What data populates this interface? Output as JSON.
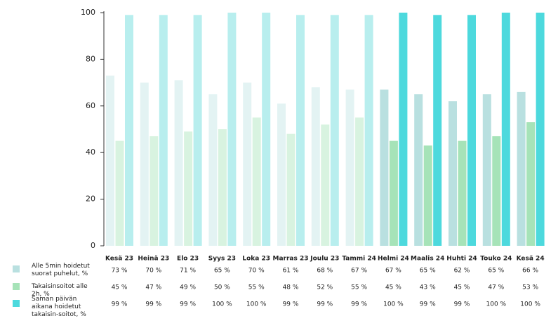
{
  "chart_data": {
    "type": "bar",
    "categories": [
      "Kesä 23",
      "Heinä 23",
      "Elo 23",
      "Syys 23",
      "Loka 23",
      "Marras 23",
      "Joulu 23",
      "Tammi 24",
      "Helmi 24",
      "Maalis 24",
      "Huhti 24",
      "Touko 24",
      "Kesä 24"
    ],
    "series": [
      {
        "name": "Alle 5min hoidetut suorat puhelut, %",
        "color": "#b9e0e0",
        "colors": [
          "#e3f3f3",
          "#e3f3f3",
          "#e3f3f3",
          "#e3f3f3",
          "#e3f3f3",
          "#e3f3f3",
          "#e3f3f3",
          "#e3f3f3",
          "#b9e0e0",
          "#b9e0e0",
          "#b9e0e0",
          "#b9e0e0",
          "#b9e0e0"
        ],
        "values": [
          73,
          70,
          71,
          65,
          70,
          61,
          68,
          67,
          67,
          65,
          62,
          65,
          66
        ],
        "value_labels": [
          "73 %",
          "70 %",
          "71 %",
          "65 %",
          "70 %",
          "61 %",
          "68 %",
          "67 %",
          "67 %",
          "65 %",
          "62 %",
          "65 %",
          "66 %"
        ]
      },
      {
        "name": "Takaisinsoitot alle 2h, %",
        "color": "#a6e3b8",
        "colors": [
          "#d8f3e0",
          "#d8f3e0",
          "#d8f3e0",
          "#d8f3e0",
          "#d8f3e0",
          "#d8f3e0",
          "#d8f3e0",
          "#d8f3e0",
          "#a6e3b8",
          "#a6e3b8",
          "#a6e3b8",
          "#a6e3b8",
          "#a6e3b8"
        ],
        "values": [
          45,
          47,
          49,
          50,
          55,
          48,
          52,
          55,
          45,
          43,
          45,
          47,
          53
        ],
        "value_labels": [
          "45 %",
          "47 %",
          "49 %",
          "50 %",
          "55 %",
          "48 %",
          "52 %",
          "55 %",
          "45 %",
          "43 %",
          "45 %",
          "47 %",
          "53 %"
        ]
      },
      {
        "name": "Saman päivän aikana hoidetut takaisin-soitot, %",
        "color": "#4dd9dd",
        "colors": [
          "#b8eeee",
          "#b8eeee",
          "#b8eeee",
          "#b8eeee",
          "#b8eeee",
          "#b8eeee",
          "#b8eeee",
          "#b8eeee",
          "#4dd9dd",
          "#4dd9dd",
          "#4dd9dd",
          "#4dd9dd",
          "#4dd9dd"
        ],
        "values": [
          99,
          99,
          99,
          100,
          100,
          99,
          99,
          99,
          100,
          99,
          99,
          100,
          100
        ],
        "value_labels": [
          "99 %",
          "99 %",
          "99 %",
          "100 %",
          "100 %",
          "99 %",
          "99 %",
          "99 %",
          "100 %",
          "99 %",
          "99 %",
          "100 %",
          "100 %"
        ]
      }
    ],
    "ylim": [
      0,
      100
    ],
    "yticks": [
      0,
      20,
      40,
      60,
      80,
      100
    ]
  }
}
